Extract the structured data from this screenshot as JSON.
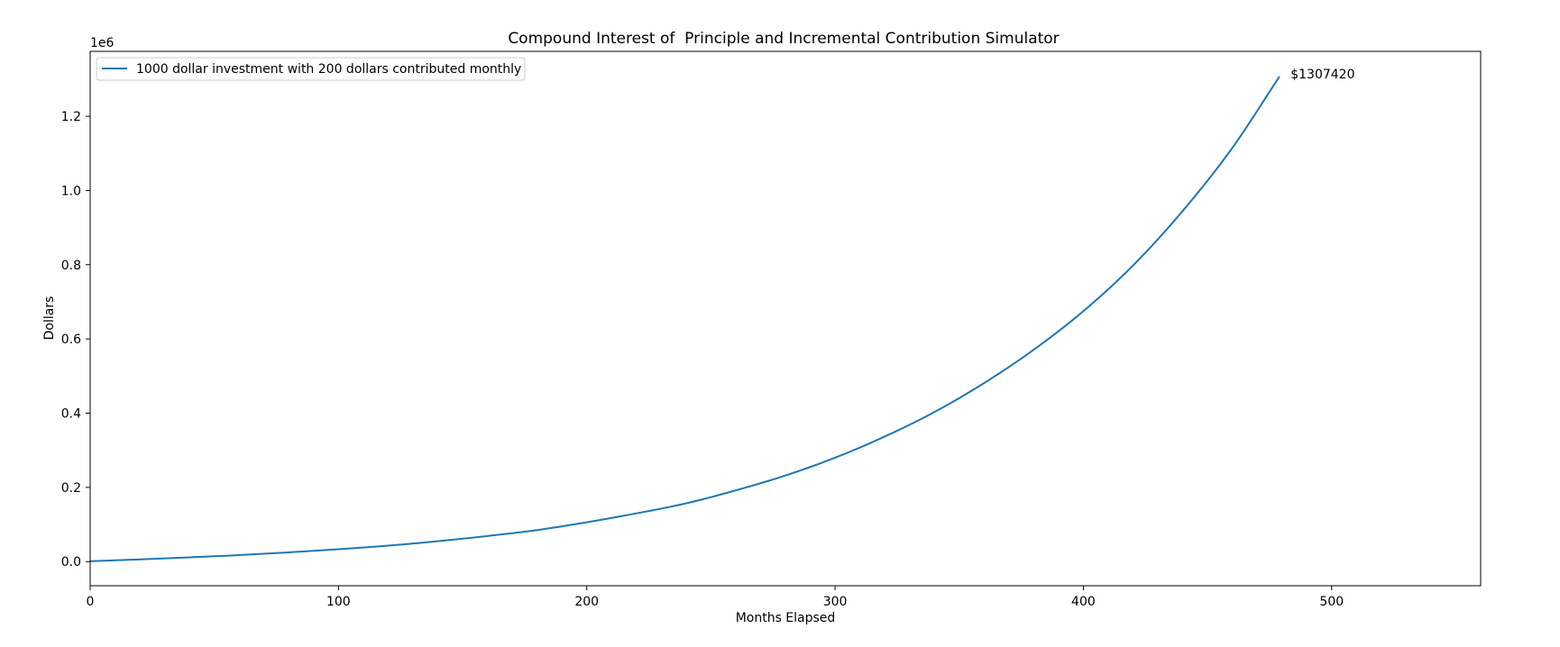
{
  "chart_data": {
    "type": "line",
    "title": "Compound Interest of  Principle and Incremental Contribution Simulator",
    "xlabel": "Months Elapsed",
    "ylabel": "Dollars",
    "offset_text": "1e6",
    "xlim": [
      0,
      560
    ],
    "ylim": [
      -65000,
      1375000
    ],
    "xticks": [
      0,
      100,
      200,
      300,
      400,
      500
    ],
    "xtick_labels": [
      "0",
      "100",
      "200",
      "300",
      "400",
      "500"
    ],
    "yticks": [
      0,
      200000,
      400000,
      600000,
      800000,
      1000000,
      1200000
    ],
    "ytick_labels": [
      "0.0",
      "0.2",
      "0.4",
      "0.6",
      "0.8",
      "1.0",
      "1.2"
    ],
    "grid": false,
    "legend": {
      "placement": "upper left"
    },
    "series": [
      {
        "name": "1000 dollar investment with 200 dollars contributed monthly",
        "color": "#1f77b4",
        "x": [
          0,
          20,
          40,
          60,
          80,
          100,
          120,
          140,
          160,
          180,
          200,
          220,
          240,
          260,
          280,
          300,
          320,
          340,
          360,
          380,
          400,
          420,
          440,
          460,
          479
        ],
        "y": [
          1000,
          6000,
          11500,
          17500,
          25000,
          33500,
          43000,
          55000,
          69000,
          85000,
          106000,
          130000,
          157000,
          192000,
          232000,
          280000,
          337000,
          403000,
          481000,
          571000,
          675000,
          798000,
          945000,
          1115000,
          1307420
        ]
      }
    ],
    "annotations": [
      {
        "text": "$1307420",
        "x": 482,
        "y": 1307420
      }
    ]
  }
}
